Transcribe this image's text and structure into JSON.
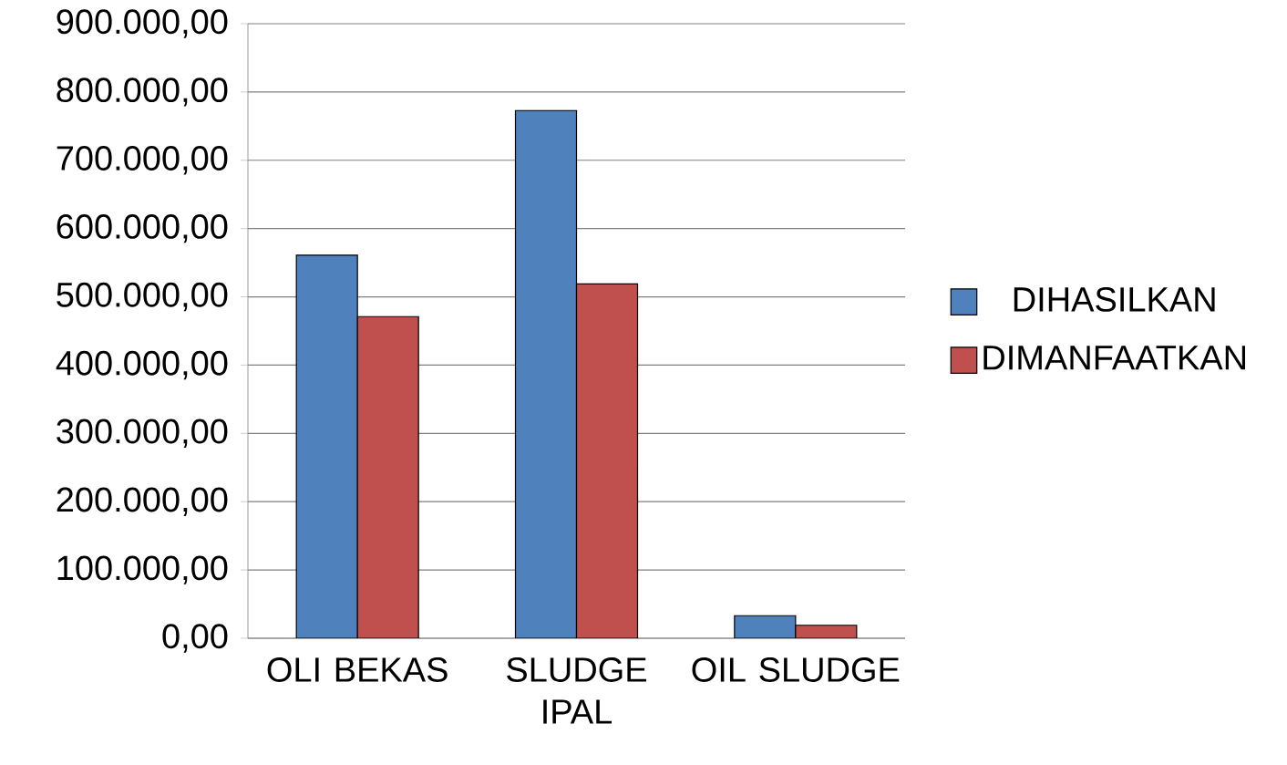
{
  "chart_data": {
    "type": "bar",
    "categories": [
      "OLI BEKAS",
      "SLUDGE IPAL",
      "OIL SLUDGE"
    ],
    "series": [
      {
        "name": "DIHASILKAN",
        "color": "#4f81bd",
        "values": [
          561000,
          773000,
          33000
        ]
      },
      {
        "name": "DIMANFAATKAN",
        "color": "#c0504d",
        "values": [
          471000,
          519000,
          19000
        ]
      }
    ],
    "ylim": [
      0,
      900000
    ],
    "yticks": [
      {
        "value": 0,
        "label": "0,00"
      },
      {
        "value": 100000,
        "label": "100.000,00"
      },
      {
        "value": 200000,
        "label": "200.000,00"
      },
      {
        "value": 300000,
        "label": "300.000,00"
      },
      {
        "value": 400000,
        "label": "400.000,00"
      },
      {
        "value": 500000,
        "label": "500.000,00"
      },
      {
        "value": 600000,
        "label": "600.000,00"
      },
      {
        "value": 700000,
        "label": "700.000,00"
      },
      {
        "value": 800000,
        "label": "800.000,00"
      },
      {
        "value": 900000,
        "label": "900.000,00"
      }
    ],
    "grid": "y",
    "legend": "right"
  }
}
